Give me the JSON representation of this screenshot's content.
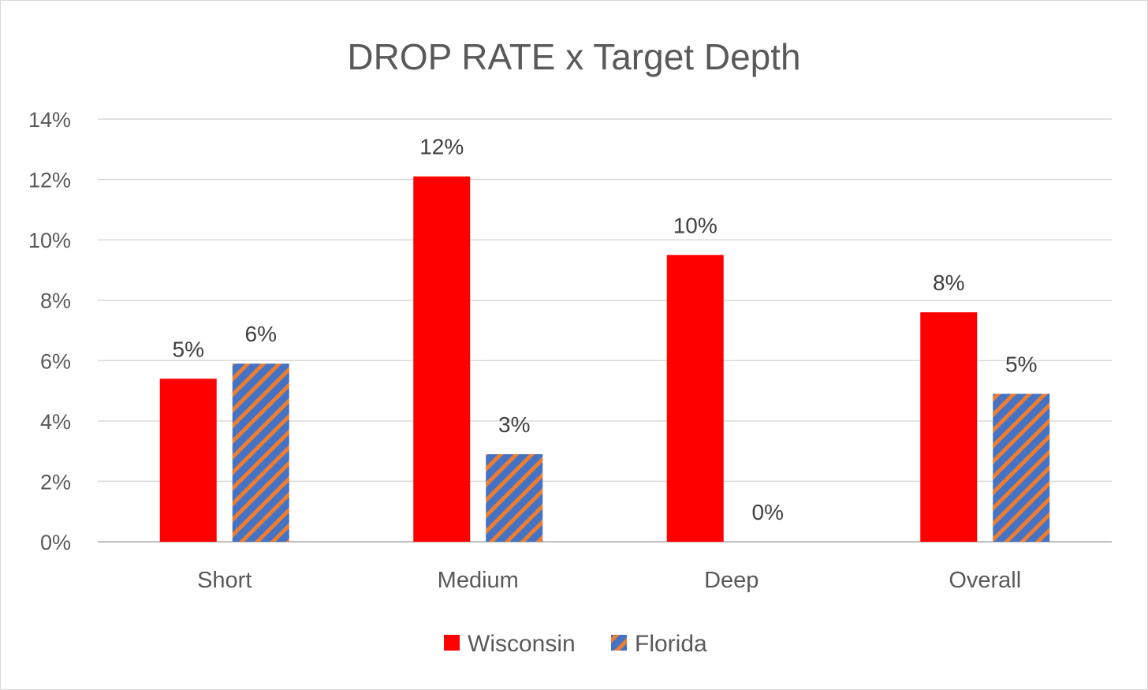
{
  "chart_data": {
    "type": "bar",
    "title": "DROP RATE x Target Depth",
    "xlabel": "",
    "ylabel": "",
    "categories": [
      "Short",
      "Medium",
      "Deep",
      "Overall"
    ],
    "ylim": [
      0,
      14
    ],
    "yticks": [
      0,
      2,
      4,
      6,
      8,
      10,
      12,
      14
    ],
    "ytick_format": "%",
    "grid": true,
    "legend_position": "bottom",
    "series": [
      {
        "name": "Wisconsin",
        "color": "#ff0000",
        "pattern": "solid",
        "values": [
          5.4,
          12.1,
          9.5,
          7.6
        ],
        "labels": [
          "5%",
          "12%",
          "10%",
          "8%"
        ]
      },
      {
        "name": "Florida",
        "color": "#4472c4",
        "pattern_color": "#ed7d31",
        "pattern": "diagonal-stripes",
        "values": [
          5.9,
          2.9,
          0,
          4.9
        ],
        "labels": [
          "6%",
          "3%",
          "0%",
          "5%"
        ]
      }
    ]
  }
}
